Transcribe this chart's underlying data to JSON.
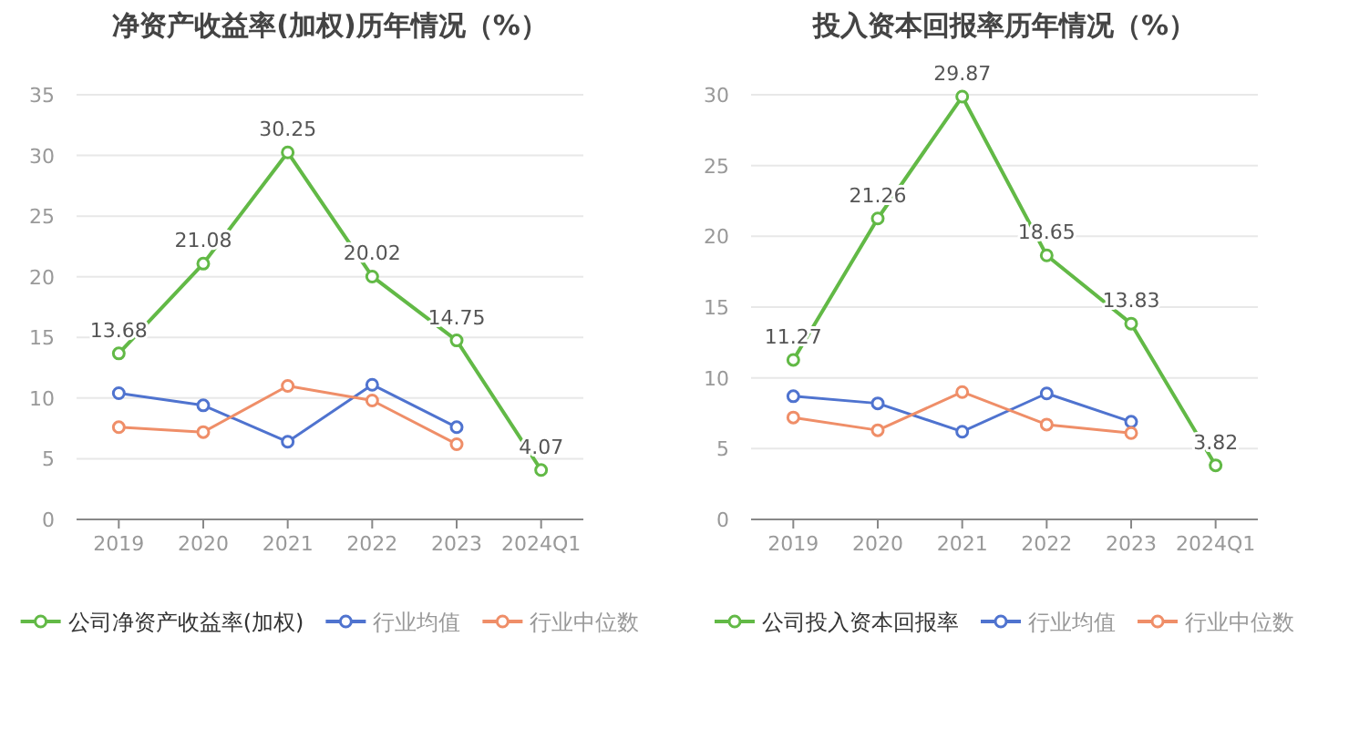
{
  "chart_data": [
    {
      "type": "line",
      "title": "净资产收益率(加权)历年情况（%）",
      "categories": [
        "2019",
        "2020",
        "2021",
        "2022",
        "2023",
        "2024Q1"
      ],
      "series": [
        {
          "name": "公司净资产收益率(加权)",
          "color": "#62b946",
          "values": [
            13.68,
            21.08,
            30.25,
            20.02,
            14.75,
            4.07
          ],
          "value_labels": [
            "13.68",
            "21.08",
            "30.25",
            "20.02",
            "14.75",
            "4.07"
          ]
        },
        {
          "name": "行业均值",
          "color": "#4f73cf",
          "values": [
            10.4,
            9.4,
            6.4,
            11.1,
            7.6,
            null
          ]
        },
        {
          "name": "行业中位数",
          "color": "#ef8e68",
          "values": [
            7.6,
            7.2,
            11.0,
            9.8,
            6.2,
            null
          ]
        }
      ],
      "ylim": [
        0,
        35
      ],
      "yticks": [
        0,
        5,
        10,
        15,
        20,
        25,
        30,
        35
      ],
      "grid": "y",
      "legend": "bottom",
      "marker": "circle"
    },
    {
      "type": "line",
      "title": "投入资本回报率历年情况（%）",
      "categories": [
        "2019",
        "2020",
        "2021",
        "2022",
        "2023",
        "2024Q1"
      ],
      "series": [
        {
          "name": "公司投入资本回报率",
          "color": "#62b946",
          "values": [
            11.27,
            21.26,
            29.87,
            18.65,
            13.83,
            3.82
          ],
          "value_labels": [
            "11.27",
            "21.26",
            "29.87",
            "18.65",
            "13.83",
            "3.82"
          ]
        },
        {
          "name": "行业均值",
          "color": "#4f73cf",
          "values": [
            8.7,
            8.2,
            6.2,
            8.9,
            6.9,
            null
          ]
        },
        {
          "name": "行业中位数",
          "color": "#ef8e68",
          "values": [
            7.2,
            6.3,
            9.0,
            6.7,
            6.1,
            null
          ]
        }
      ],
      "ylim": [
        0,
        30
      ],
      "yticks": [
        0,
        5,
        10,
        15,
        20,
        25,
        30
      ],
      "grid": "y",
      "legend": "bottom",
      "marker": "circle"
    }
  ]
}
